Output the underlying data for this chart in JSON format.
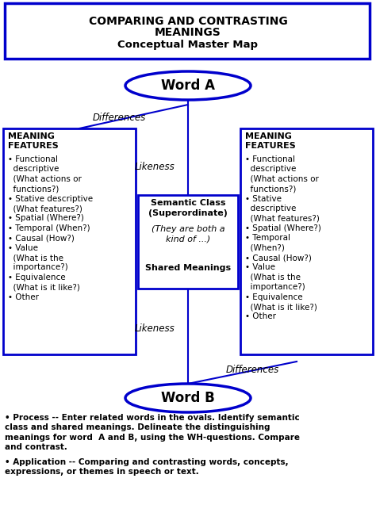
{
  "title_line1": "COMPARING AND CONTRASTING",
  "title_line2": "MEANINGS",
  "title_line3": "Conceptual Master Map",
  "word_a": "Word A",
  "word_b": "Word B",
  "differences_top": "Differences",
  "differences_bottom": "Differences",
  "likeness_top": "Likeness",
  "likeness_bottom": "Likeness",
  "footnote1": "• Process -- Enter related words in the ovals. Identify semantic\nclass and shared meanings. Delineate the distinguishing\nmeanings for word  A and B, using the WH-questions. Compare\nand contrast.",
  "footnote2": "• Application -- Comparing and contrasting words, concepts,\nexpressions, or themes in speech or text.",
  "blue": "#0000CC",
  "black": "#000000",
  "white": "#FFFFFF"
}
